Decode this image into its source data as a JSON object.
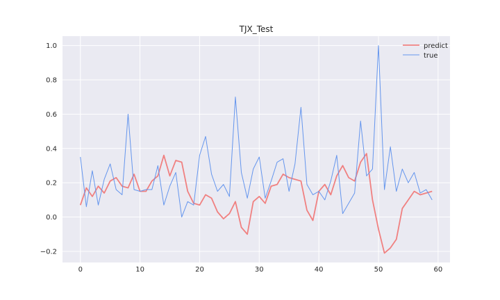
{
  "chart_data": {
    "type": "line",
    "title": "TJX_Test",
    "xlabel": "",
    "ylabel": "",
    "xlim": [
      -3,
      62
    ],
    "ylim": [
      -0.265,
      1.055
    ],
    "xticks": [
      0,
      10,
      20,
      30,
      40,
      50,
      60
    ],
    "yticks": [
      -0.2,
      0.0,
      0.2,
      0.4,
      0.6,
      0.8,
      1.0
    ],
    "xtick_labels": [
      "0",
      "10",
      "20",
      "30",
      "40",
      "50",
      "60"
    ],
    "ytick_labels": [
      "−0.2",
      "0.0",
      "0.2",
      "0.4",
      "0.6",
      "0.8",
      "1.0"
    ],
    "grid": true,
    "legend_position": "top-right",
    "background": "#eaeaf2",
    "series": [
      {
        "name": "predict",
        "color": "#f08080",
        "x": [
          0,
          1,
          2,
          3,
          4,
          5,
          6,
          7,
          8,
          9,
          10,
          11,
          12,
          13,
          14,
          15,
          16,
          17,
          18,
          19,
          20,
          21,
          22,
          23,
          24,
          25,
          26,
          27,
          28,
          29,
          30,
          31,
          32,
          33,
          34,
          35,
          36,
          37,
          38,
          39,
          40,
          41,
          42,
          43,
          44,
          45,
          46,
          47,
          48,
          49,
          50,
          51,
          52,
          53,
          54,
          55,
          56,
          57,
          58,
          59
        ],
        "values": [
          0.07,
          0.17,
          0.12,
          0.18,
          0.14,
          0.21,
          0.23,
          0.18,
          0.17,
          0.25,
          0.15,
          0.15,
          0.21,
          0.24,
          0.36,
          0.24,
          0.33,
          0.32,
          0.15,
          0.08,
          0.07,
          0.13,
          0.11,
          0.03,
          -0.01,
          0.02,
          0.09,
          -0.06,
          -0.1,
          0.09,
          0.12,
          0.08,
          0.18,
          0.19,
          0.25,
          0.23,
          0.22,
          0.21,
          0.04,
          -0.02,
          0.15,
          0.19,
          0.13,
          0.24,
          0.3,
          0.23,
          0.21,
          0.32,
          0.37,
          0.1,
          -0.07,
          -0.21,
          -0.18,
          -0.13,
          0.05,
          0.1,
          0.15,
          0.13,
          0.14,
          0.15
        ]
      },
      {
        "name": "true",
        "color": "#6495ed",
        "x": [
          0,
          1,
          2,
          3,
          4,
          5,
          6,
          7,
          8,
          9,
          10,
          11,
          12,
          13,
          14,
          15,
          16,
          17,
          18,
          19,
          20,
          21,
          22,
          23,
          24,
          25,
          26,
          27,
          28,
          29,
          30,
          31,
          32,
          33,
          34,
          35,
          36,
          37,
          38,
          39,
          40,
          41,
          42,
          43,
          44,
          45,
          46,
          47,
          48,
          49,
          50,
          51,
          52,
          53,
          54,
          55,
          56,
          57,
          58,
          59
        ],
        "values": [
          0.35,
          0.06,
          0.27,
          0.07,
          0.22,
          0.31,
          0.16,
          0.13,
          0.6,
          0.16,
          0.15,
          0.16,
          0.16,
          0.3,
          0.07,
          0.18,
          0.26,
          0.0,
          0.09,
          0.07,
          0.36,
          0.47,
          0.25,
          0.15,
          0.19,
          0.12,
          0.7,
          0.26,
          0.11,
          0.28,
          0.35,
          0.11,
          0.21,
          0.32,
          0.34,
          0.15,
          0.31,
          0.64,
          0.19,
          0.13,
          0.15,
          0.1,
          0.21,
          0.36,
          0.02,
          0.08,
          0.14,
          0.56,
          0.24,
          0.28,
          1.0,
          0.16,
          0.41,
          0.15,
          0.28,
          0.2,
          0.26,
          0.14,
          0.16,
          0.1
        ]
      }
    ]
  }
}
